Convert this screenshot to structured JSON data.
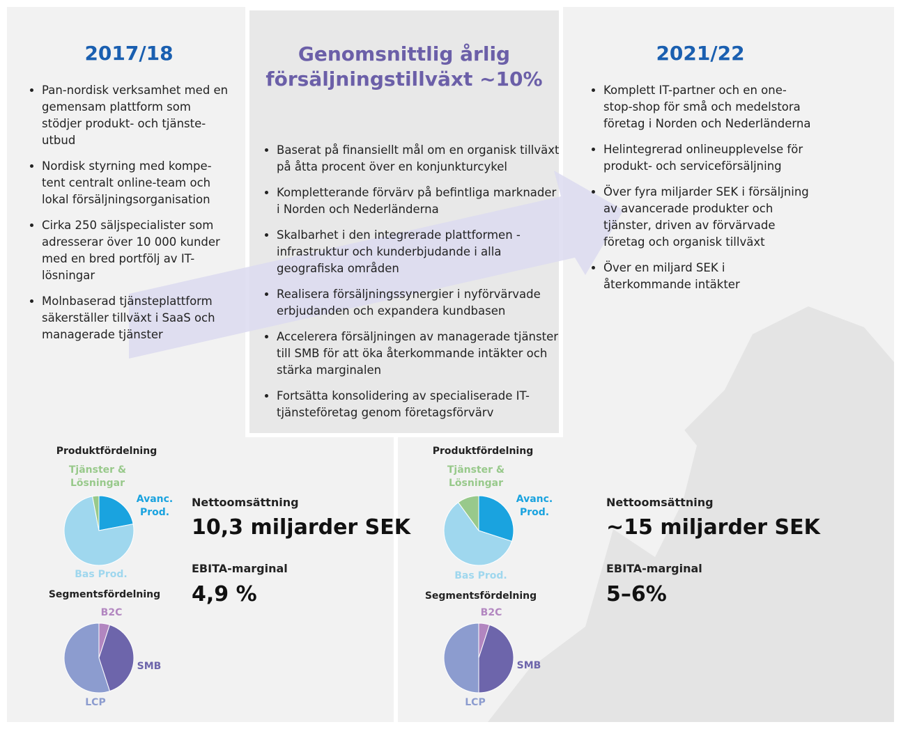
{
  "left": {
    "title": "2017/18",
    "bullets": [
      "Pan-nordisk verksamhet med en gemensam plattform som stödjer produkt- och tjänste-utbud",
      "Nordisk styrning med kompe-tent centralt online-team och lokal försäljningsorganisation",
      "Cirka 250 säljspecialister som adresserar över 10 000 kunder med en bred portfölj av IT-lösningar",
      "Molnbaserad tjänsteplattform säkerställer tillväxt i SaaS och managerade tjänster"
    ],
    "net_sales_label": "Nettoomsättning",
    "net_sales": "10,3 miljarder SEK",
    "ebita_label": "EBITA-marginal",
    "ebita": "4,9 %"
  },
  "center": {
    "title": "Genomsnittlig årlig försäljningstillväxt ~10%",
    "bullets": [
      "Baserat på finansiellt mål om en organisk tillväxt på åtta procent över en konjunkturcykel",
      "Kompletterande förvärv på befintliga marknader i Norden och Nederländerna",
      "Skalbarhet i den integrerade plattformen - infrastruktur och kunderbjudande i alla geografiska områden",
      "Realisera försäljningssynergier i nyförvärvade erbjudanden och expandera kundbasen",
      "Accelerera försäljningen av managerade tjänster till SMB för att öka återkommande intäkter och stärka marginalen",
      "Fortsätta konsolidering av specialiserade IT-tjänsteföretag genom företagsförvärv"
    ]
  },
  "right": {
    "title": "2021/22",
    "bullets": [
      "Komplett IT-partner och en one-stop-shop för små och medelstora företag i Norden och Nederländerna",
      "Helintegrerad onlineupplevelse för produkt- och serviceförsäljning",
      "Över fyra miljarder SEK i försäljning av avancerade produkter och tjänster, driven av förvärvade företag och organisk tillväxt",
      "Över en miljard SEK i återkommande intäkter"
    ],
    "net_sales_label": "Nettoomsättning",
    "net_sales": "~15 miljarder SEK",
    "ebita_label": "EBITA-marginal",
    "ebita": "5–6%"
  },
  "chart_data": [
    {
      "type": "pie",
      "title": "Produktfördelning",
      "categories": [
        "Avanc. Prod.",
        "Bas Prod.",
        "Tjänster & Lösningar"
      ],
      "values": [
        22,
        75,
        3
      ],
      "colors": [
        "#1aa3df",
        "#9fd7ee",
        "#98c98b"
      ]
    },
    {
      "type": "pie",
      "title": "Segmentsfördelning",
      "categories": [
        "B2C",
        "SMB",
        "LCP"
      ],
      "values": [
        5,
        40,
        55
      ],
      "colors": [
        "#b286c0",
        "#6d65ab",
        "#8c9ccf"
      ]
    },
    {
      "type": "pie",
      "title": "Produktfördelning",
      "categories": [
        "Avanc. Prod.",
        "Bas Prod.",
        "Tjänster & Lösningar"
      ],
      "values": [
        30,
        60,
        10
      ],
      "colors": [
        "#1aa3df",
        "#9fd7ee",
        "#98c98b"
      ]
    },
    {
      "type": "pie",
      "title": "Segmentsfördelning",
      "categories": [
        "B2C",
        "SMB",
        "LCP"
      ],
      "values": [
        5,
        45,
        50
      ],
      "colors": [
        "#b286c0",
        "#6d65ab",
        "#8c9ccf"
      ]
    }
  ]
}
